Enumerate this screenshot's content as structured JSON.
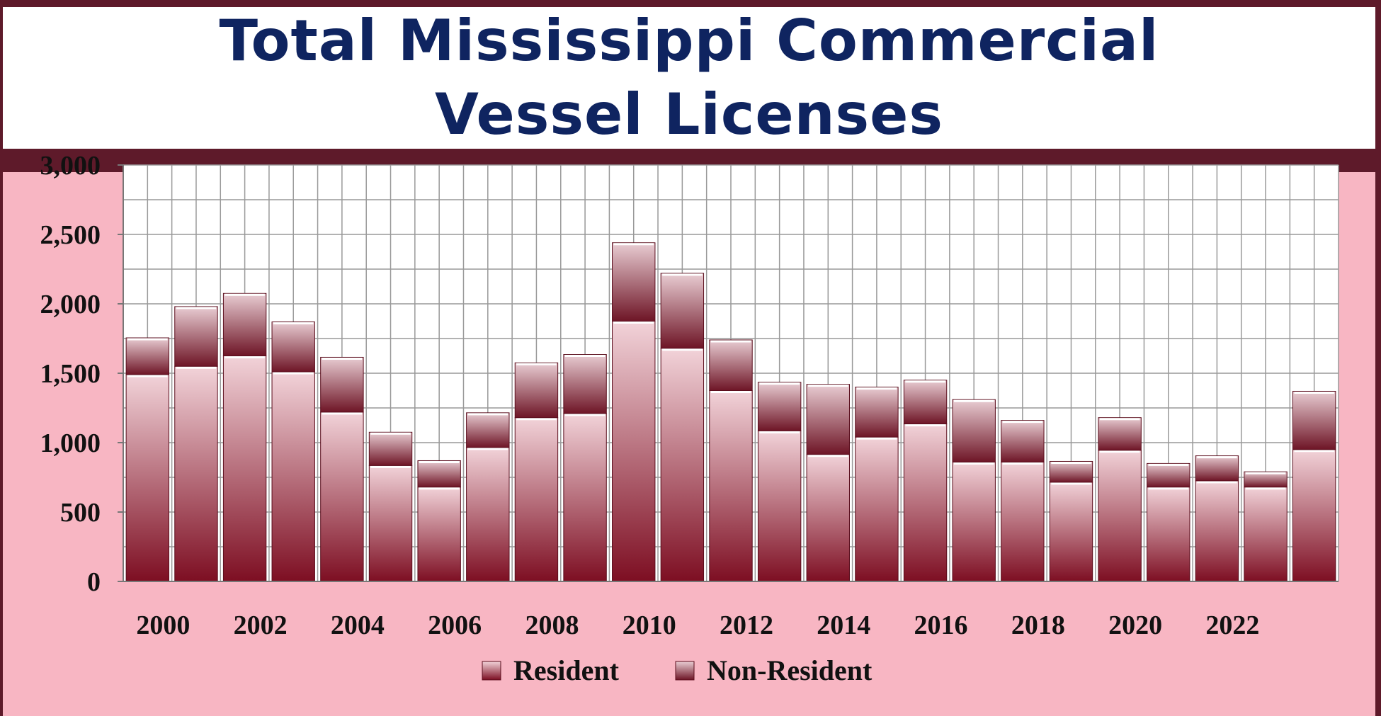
{
  "title": "Total Mississippi Commercial Vessel Licenses",
  "colors": {
    "frame": "#5e1a2a",
    "plot_background": "#f8b6c3",
    "resident_light": "#f2d3d9",
    "resident_dark": "#7d0e22",
    "nonresident_light": "#e9cdd3",
    "nonresident_dark": "#6e1526",
    "title": "#0f2460"
  },
  "chart_data": {
    "type": "bar",
    "stacked": true,
    "title": "Total Mississippi Commercial Vessel Licenses",
    "categories": [
      "2000",
      "2001",
      "2002",
      "2003",
      "2004",
      "2005",
      "2006",
      "2007",
      "2008",
      "2009",
      "2010",
      "2011",
      "2012",
      "2013",
      "2014",
      "2015",
      "2016",
      "2017",
      "2018",
      "2019",
      "2020",
      "2021",
      "2022",
      "2023",
      "2024"
    ],
    "x_tick_labels": [
      "2000",
      "2002",
      "2004",
      "2006",
      "2008",
      "2010",
      "2012",
      "2014",
      "2016",
      "2018",
      "2020",
      "2022"
    ],
    "y_tick_labels": [
      "0",
      "500",
      "1,000",
      "1,500",
      "2,000",
      "2,500",
      "3,000"
    ],
    "ylim": [
      0,
      3000
    ],
    "grid": true,
    "legend": "bottom",
    "series": [
      {
        "name": "Resident",
        "values": [
          1490,
          1550,
          1625,
          1510,
          1220,
          835,
          680,
          965,
          1180,
          1210,
          1875,
          1680,
          1375,
          1085,
          915,
          1040,
          1135,
          860,
          860,
          715,
          945,
          680,
          725,
          680,
          950
        ]
      },
      {
        "name": "Non-Resident",
        "values": [
          265,
          430,
          450,
          360,
          395,
          240,
          190,
          250,
          395,
          425,
          565,
          540,
          365,
          350,
          505,
          360,
          315,
          450,
          300,
          150,
          235,
          170,
          180,
          110,
          420
        ]
      }
    ]
  }
}
